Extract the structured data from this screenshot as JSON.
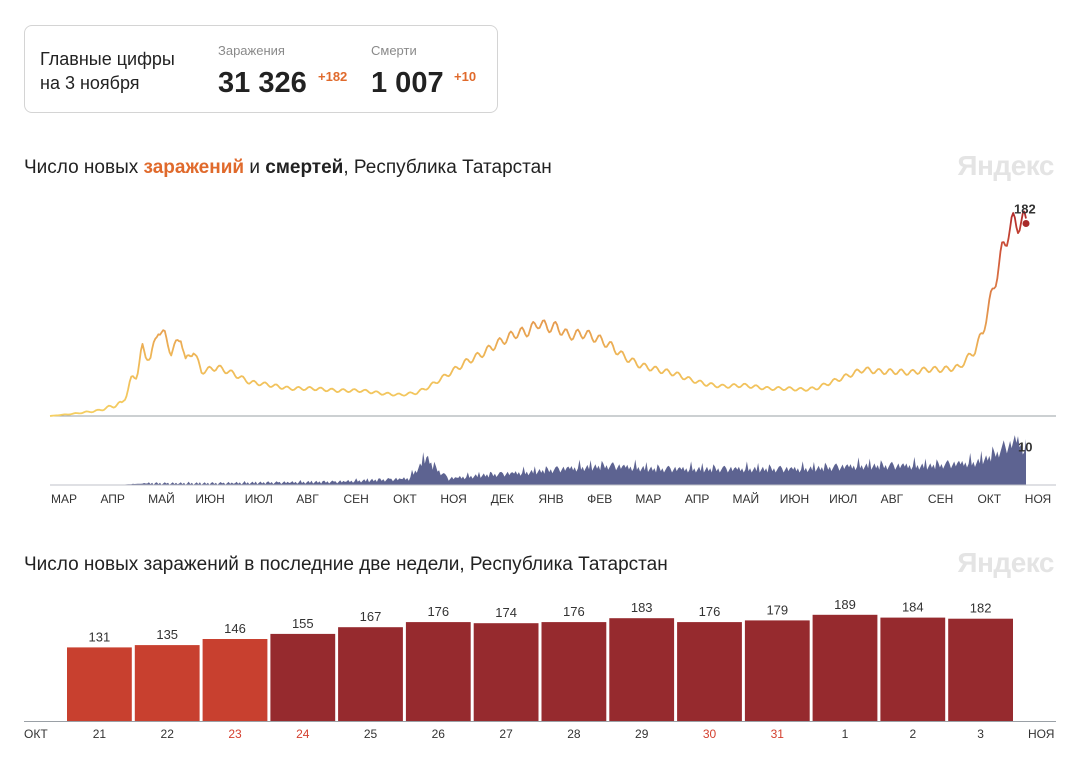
{
  "summary": {
    "caption_line1": "Главные цифры",
    "caption_line2": "на 3 ноября",
    "infections": {
      "label": "Заражения",
      "value": "31 326",
      "delta": "+182"
    },
    "deaths": {
      "label": "Смерти",
      "value": "1 007",
      "delta": "+10"
    }
  },
  "watermark": "Яндекс",
  "chart_data": [
    {
      "type": "area",
      "title_parts": [
        "Число новых ",
        "заражений",
        " и ",
        "смертей",
        ", Республика Татарстан"
      ],
      "x_ticks": [
        "МАР",
        "АПР",
        "МАЙ",
        "ИЮН",
        "ИЮЛ",
        "АВГ",
        "СЕН",
        "ОКТ",
        "НОЯ",
        "ДЕК",
        "ЯНВ",
        "ФЕВ",
        "МАР",
        "АПР",
        "МАЙ",
        "ИЮН",
        "ИЮЛ",
        "АВГ",
        "СЕН",
        "ОКТ",
        "НОЯ"
      ],
      "start_date": "2020-03-01",
      "end_date": "2021-11-03",
      "y_max": 190,
      "infections_anchors": [
        [
          0,
          0
        ],
        [
          14,
          2
        ],
        [
          30,
          5
        ],
        [
          45,
          12
        ],
        [
          52,
          35
        ],
        [
          58,
          58
        ],
        [
          63,
          55
        ],
        [
          68,
          82
        ],
        [
          72,
          76
        ],
        [
          76,
          60
        ],
        [
          82,
          75
        ],
        [
          85,
          52
        ],
        [
          90,
          62
        ],
        [
          95,
          42
        ],
        [
          105,
          46
        ],
        [
          115,
          40
        ],
        [
          125,
          32
        ],
        [
          135,
          30
        ],
        [
          150,
          26
        ],
        [
          165,
          26
        ],
        [
          180,
          24
        ],
        [
          195,
          24
        ],
        [
          210,
          21
        ],
        [
          220,
          20
        ],
        [
          230,
          22
        ],
        [
          238,
          28
        ],
        [
          245,
          35
        ],
        [
          252,
          42
        ],
        [
          262,
          52
        ],
        [
          270,
          58
        ],
        [
          280,
          68
        ],
        [
          292,
          78
        ],
        [
          300,
          80
        ],
        [
          306,
          88
        ],
        [
          312,
          84
        ],
        [
          318,
          84
        ],
        [
          325,
          76
        ],
        [
          335,
          78
        ],
        [
          345,
          72
        ],
        [
          352,
          66
        ],
        [
          360,
          56
        ],
        [
          370,
          48
        ],
        [
          380,
          44
        ],
        [
          392,
          40
        ],
        [
          402,
          34
        ],
        [
          412,
          30
        ],
        [
          422,
          28
        ],
        [
          435,
          29
        ],
        [
          450,
          26
        ],
        [
          462,
          26
        ],
        [
          472,
          25
        ],
        [
          480,
          26
        ],
        [
          490,
          32
        ],
        [
          500,
          38
        ],
        [
          510,
          44
        ],
        [
          520,
          42
        ],
        [
          530,
          42
        ],
        [
          540,
          41
        ],
        [
          550,
          44
        ],
        [
          560,
          44
        ],
        [
          570,
          46
        ],
        [
          575,
          54
        ],
        [
          580,
          62
        ],
        [
          585,
          80
        ],
        [
          589,
          105
        ],
        [
          593,
          130
        ],
        [
          597,
          155
        ],
        [
          601,
          176
        ],
        [
          605,
          183
        ],
        [
          608,
          184
        ],
        [
          612,
          182
        ]
      ],
      "infections_latest": 182,
      "deaths_max": 14,
      "deaths_anchors": [
        [
          0,
          0
        ],
        [
          40,
          0
        ],
        [
          60,
          0.5
        ],
        [
          100,
          0.5
        ],
        [
          180,
          1
        ],
        [
          225,
          2
        ],
        [
          232,
          6
        ],
        [
          236,
          9
        ],
        [
          240,
          6
        ],
        [
          250,
          2
        ],
        [
          270,
          3
        ],
        [
          300,
          4
        ],
        [
          320,
          5
        ],
        [
          350,
          6
        ],
        [
          380,
          5
        ],
        [
          420,
          5
        ],
        [
          470,
          5
        ],
        [
          510,
          6
        ],
        [
          550,
          6
        ],
        [
          580,
          7
        ],
        [
          590,
          9
        ],
        [
          600,
          12
        ],
        [
          607,
          14
        ],
        [
          612,
          10
        ]
      ],
      "deaths_latest": 10
    },
    {
      "type": "bar",
      "title": "Число новых заражений в последние две недели, Республика Татарстан",
      "start_label": "ОКТ",
      "end_label": "НОЯ",
      "categories": [
        "21",
        "22",
        "23",
        "24",
        "25",
        "26",
        "27",
        "28",
        "29",
        "30",
        "31",
        "1",
        "2",
        "3"
      ],
      "values": [
        131,
        135,
        146,
        155,
        167,
        176,
        174,
        176,
        183,
        176,
        179,
        189,
        184,
        182
      ],
      "highlighted_categories": [
        "23",
        "24",
        "30",
        "31"
      ],
      "ylim": [
        0,
        210
      ],
      "colors": {
        "light": "#c8402f",
        "dark": "#962a2e",
        "highlight_text": "#d4402f"
      }
    }
  ]
}
